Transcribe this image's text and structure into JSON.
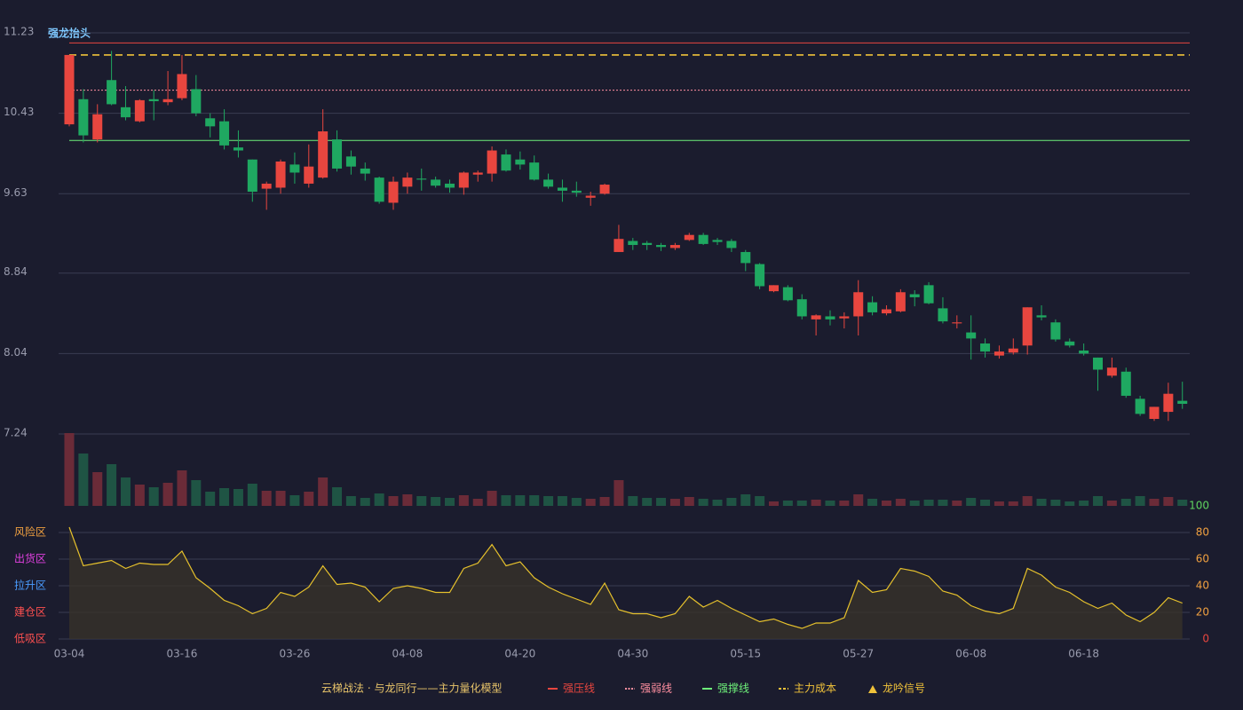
{
  "chart_data": {
    "type": "candlestick",
    "annotation": "强龙抬头",
    "legend_title": "云梯战法 · 与龙同行——主力量化模型",
    "categories": [
      "03-04",
      null,
      null,
      null,
      null,
      null,
      null,
      null,
      "03-16",
      null,
      null,
      null,
      null,
      null,
      null,
      null,
      "03-26",
      null,
      null,
      null,
      null,
      null,
      null,
      null,
      "04-08",
      null,
      null,
      null,
      null,
      null,
      null,
      null,
      "04-20",
      null,
      null,
      null,
      null,
      null,
      null,
      null,
      "04-30",
      null,
      null,
      null,
      null,
      null,
      null,
      null,
      "05-15",
      null,
      null,
      null,
      null,
      null,
      null,
      null,
      "05-27",
      null,
      null,
      null,
      null,
      null,
      null,
      null,
      "06-08",
      null,
      null,
      null,
      null,
      null,
      null,
      null,
      "06-18",
      null,
      null,
      null,
      null,
      null,
      null,
      null
    ],
    "open": [
      10.32,
      10.57,
      10.17,
      10.76,
      10.49,
      10.35,
      10.57,
      10.54,
      10.58,
      10.67,
      10.38,
      10.35,
      10.09,
      9.97,
      9.68,
      9.69,
      9.92,
      9.73,
      9.79,
      10.17,
      10.0,
      9.88,
      9.79,
      9.54,
      9.7,
      9.78,
      9.77,
      9.73,
      9.69,
      9.82,
      9.83,
      10.02,
      9.97,
      9.94,
      9.77,
      9.69,
      9.66,
      9.59,
      9.63,
      9.05,
      9.16,
      9.14,
      9.12,
      9.09,
      9.17,
      9.22,
      9.17,
      9.16,
      9.05,
      8.93,
      8.66,
      8.7,
      8.58,
      8.38,
      8.41,
      8.39,
      8.41,
      8.55,
      8.44,
      8.46,
      8.63,
      8.72,
      8.49,
      8.34,
      8.25,
      8.14,
      8.02,
      8.05,
      8.12,
      8.42,
      8.35,
      8.16,
      8.07,
      8.0,
      7.82,
      7.86,
      7.59,
      7.39,
      7.46,
      7.57
    ],
    "close": [
      11.01,
      10.21,
      10.42,
      10.52,
      10.39,
      10.56,
      10.55,
      10.57,
      10.82,
      10.43,
      10.3,
      10.11,
      10.06,
      9.65,
      9.73,
      9.95,
      9.84,
      9.9,
      10.25,
      9.88,
      9.9,
      9.83,
      9.55,
      9.75,
      9.79,
      9.77,
      9.71,
      9.69,
      9.84,
      9.84,
      10.06,
      9.86,
      9.92,
      9.77,
      9.7,
      9.66,
      9.64,
      9.61,
      9.72,
      9.18,
      9.12,
      9.12,
      9.1,
      9.12,
      9.22,
      9.13,
      9.15,
      9.09,
      8.94,
      8.71,
      8.72,
      8.57,
      8.41,
      8.42,
      8.38,
      8.41,
      8.65,
      8.45,
      8.48,
      8.65,
      8.6,
      8.54,
      8.36,
      8.35,
      8.19,
      8.06,
      8.06,
      8.09,
      8.5,
      8.4,
      8.18,
      8.12,
      8.04,
      7.88,
      7.9,
      7.62,
      7.44,
      7.51,
      7.64,
      7.54
    ],
    "low": [
      10.3,
      10.14,
      10.14,
      10.51,
      10.36,
      10.34,
      10.36,
      10.51,
      10.56,
      10.4,
      10.19,
      10.07,
      9.99,
      9.55,
      9.47,
      9.63,
      9.73,
      9.69,
      9.78,
      9.85,
      9.82,
      9.76,
      9.53,
      9.47,
      9.63,
      9.66,
      9.69,
      9.64,
      9.62,
      9.75,
      9.75,
      9.85,
      9.87,
      9.76,
      9.68,
      9.55,
      9.6,
      9.51,
      9.62,
      9.05,
      9.07,
      9.07,
      9.06,
      9.07,
      9.16,
      9.12,
      9.12,
      9.05,
      8.86,
      8.68,
      8.65,
      8.56,
      8.38,
      8.22,
      8.32,
      8.29,
      8.22,
      8.42,
      8.42,
      8.45,
      8.51,
      8.53,
      8.34,
      8.29,
      7.98,
      8.0,
      7.99,
      8.03,
      8.03,
      8.37,
      8.16,
      8.1,
      8.02,
      7.67,
      7.8,
      7.6,
      7.42,
      7.37,
      7.37,
      7.49
    ],
    "high": [
      11.01,
      10.67,
      10.52,
      11.05,
      10.7,
      10.57,
      10.66,
      10.85,
      11.01,
      10.81,
      10.43,
      10.47,
      10.26,
      9.97,
      9.75,
      9.97,
      10.04,
      10.12,
      10.47,
      10.26,
      10.06,
      9.94,
      9.8,
      9.8,
      9.84,
      9.88,
      9.8,
      9.77,
      9.85,
      9.86,
      10.1,
      10.07,
      10.05,
      10.01,
      9.83,
      9.77,
      9.75,
      9.65,
      9.73,
      9.32,
      9.19,
      9.16,
      9.14,
      9.14,
      9.24,
      9.24,
      9.19,
      9.18,
      9.07,
      8.94,
      8.72,
      8.72,
      8.63,
      8.43,
      8.47,
      8.45,
      8.77,
      8.61,
      8.52,
      8.68,
      8.67,
      8.75,
      8.6,
      8.42,
      8.42,
      8.19,
      8.12,
      8.19,
      8.5,
      8.52,
      8.38,
      8.19,
      8.14,
      8.0,
      8.0,
      7.9,
      7.62,
      7.51,
      7.75,
      7.76
    ],
    "up_color": "#e8463f",
    "down_color": "#1fa861",
    "volume": [
      82,
      59,
      38,
      47,
      32,
      24,
      21,
      26,
      40,
      29,
      16,
      20,
      19,
      25,
      17,
      17,
      12,
      16,
      32,
      21,
      11,
      9,
      14,
      11,
      13,
      11,
      10,
      9,
      12,
      8,
      17,
      12,
      12,
      12,
      11,
      11,
      9,
      8,
      10,
      29,
      11,
      9,
      9,
      8,
      10,
      8,
      7,
      9,
      13,
      11,
      5,
      6,
      6,
      7,
      6,
      6,
      13,
      8,
      6,
      8,
      6,
      7,
      7,
      6,
      9,
      7,
      5,
      5,
      11,
      8,
      7,
      5,
      6,
      11,
      6,
      8,
      11,
      8,
      10,
      7
    ],
    "volume_up_color": "#6b2b38",
    "volume_down_color": "#1f5444",
    "ylim": [
      7.24,
      11.23
    ],
    "yticks": [
      7.24,
      8.04,
      8.84,
      9.63,
      10.43,
      11.23
    ],
    "grid": true,
    "levels": [
      {
        "name": "强压线",
        "value": 11.13,
        "color": "#e8463f",
        "style": "solid"
      },
      {
        "name": "强弱线",
        "value": 10.66,
        "color": "#ff8fa0",
        "style": "dotted"
      },
      {
        "name": "强撑线",
        "value": 10.16,
        "color": "#6ef07a",
        "style": "solid"
      },
      {
        "name": "主力成本",
        "value": 11.01,
        "color": "#f0c23a",
        "style": "dashed"
      }
    ],
    "signal": {
      "name": "龙吟信号",
      "color": "#f0c23a",
      "marker": "triangle"
    },
    "indicator": {
      "color": "#e6c12c",
      "values": [
        84,
        55,
        57,
        59,
        53,
        57,
        56,
        56,
        66,
        46,
        38,
        29,
        25,
        19,
        23,
        35,
        32,
        39,
        55,
        41,
        42,
        39,
        28,
        38,
        40,
        38,
        35,
        35,
        53,
        57,
        71,
        55,
        58,
        46,
        39,
        34,
        30,
        26,
        42,
        22,
        19,
        19,
        16,
        19,
        32,
        24,
        29,
        23,
        18,
        13,
        15,
        11,
        8,
        12,
        12,
        16,
        44,
        35,
        37,
        53,
        51,
        47,
        36,
        33,
        25,
        21,
        19,
        23,
        53,
        48,
        39,
        35,
        28,
        23,
        27,
        18,
        13,
        20,
        31,
        27
      ],
      "ylim": [
        0,
        100
      ],
      "yticks": [
        {
          "value": 0,
          "color": "#e8463f"
        },
        {
          "value": 20,
          "color": "#f0a040"
        },
        {
          "value": 40,
          "color": "#f0a040"
        },
        {
          "value": 60,
          "color": "#f0a040"
        },
        {
          "value": 80,
          "color": "#f0a040"
        },
        {
          "value": 100,
          "color": "#5fd35f"
        }
      ],
      "zones": [
        {
          "label": "风险区",
          "value": 80,
          "color": "#f0a040"
        },
        {
          "label": "出货区",
          "value": 60,
          "color": "#e040e0"
        },
        {
          "label": "拉升区",
          "value": 40,
          "color": "#4a9cff"
        },
        {
          "label": "建仓区",
          "value": 20,
          "color": "#ff5050"
        },
        {
          "label": "低吸区",
          "value": 0,
          "color": "#ff5050"
        }
      ]
    }
  }
}
